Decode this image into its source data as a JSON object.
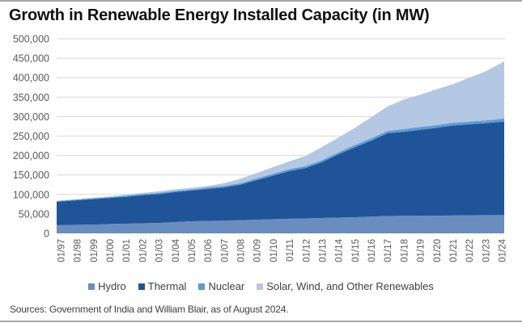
{
  "chart_data": {
    "type": "area",
    "stacked": true,
    "title": "Growth in Renewable Energy Installed Capacity (in MW)",
    "xlabel": "",
    "ylabel": "",
    "ylim": [
      0,
      500000
    ],
    "yticks": [
      0,
      50000,
      100000,
      150000,
      200000,
      250000,
      300000,
      350000,
      400000,
      450000,
      500000
    ],
    "ytick_labels": [
      "0",
      "50,000",
      "100,000",
      "150,000",
      "200,000",
      "250,000",
      "300,000",
      "350,000",
      "400,000",
      "450,000",
      "500,000"
    ],
    "grid": true,
    "legend_position": "bottom",
    "categories": [
      "01/97",
      "01/98",
      "01/99",
      "01/00",
      "01/01",
      "01/02",
      "01/03",
      "01/04",
      "01/05",
      "01/06",
      "01/07",
      "01/08",
      "01/09",
      "01/10",
      "01/11",
      "01/12",
      "01/13",
      "01/14",
      "01/15",
      "01/16",
      "01/17",
      "01/18",
      "01/19",
      "01/20",
      "01/21",
      "01/22",
      "01/23",
      "01/24"
    ],
    "series": [
      {
        "name": "Hydro",
        "color": "#6a8dbf",
        "values": [
          21000,
          22000,
          22500,
          24000,
          25000,
          26000,
          27000,
          29000,
          31000,
          32000,
          33000,
          34000,
          35000,
          36500,
          37500,
          38500,
          39500,
          40500,
          41500,
          43000,
          44500,
          45000,
          45400,
          45700,
          46000,
          46700,
          47000,
          47000
        ]
      },
      {
        "name": "Thermal",
        "color": "#1f5499",
        "values": [
          60000,
          63000,
          65500,
          67000,
          69000,
          72000,
          74000,
          77000,
          79000,
          82000,
          85000,
          91000,
          102000,
          111500,
          122500,
          129500,
          143500,
          162500,
          179500,
          195000,
          212500,
          216000,
          220600,
          225300,
          231000,
          233300,
          236000,
          240000
        ]
      },
      {
        "name": "Nuclear",
        "color": "#5b9bd5",
        "values": [
          2000,
          2000,
          2000,
          2000,
          3000,
          3000,
          3000,
          3000,
          3000,
          4000,
          4000,
          4000,
          4000,
          5000,
          5000,
          5000,
          5000,
          5000,
          6000,
          6000,
          6000,
          7000,
          7000,
          7000,
          7000,
          7000,
          7000,
          8000
        ]
      },
      {
        "name": "Solar, Wind, and Other Renewables",
        "color": "#b4c7e3",
        "values": [
          1000,
          1000,
          2000,
          2000,
          2000,
          3000,
          4000,
          4000,
          4000,
          4000,
          7000,
          11000,
          14000,
          17000,
          20000,
          26000,
          34000,
          38000,
          44000,
          54000,
          63000,
          76000,
          83000,
          92000,
          99000,
          113000,
          126000,
          147000
        ]
      }
    ]
  },
  "legend": {
    "items": [
      {
        "label": "Hydro",
        "color": "#6a8dbf"
      },
      {
        "label": "Thermal",
        "color": "#1f5499"
      },
      {
        "label": "Nuclear",
        "color": "#5b9bd5"
      },
      {
        "label": "Solar, Wind, and Other Renewables",
        "color": "#b4c7e3"
      }
    ]
  },
  "source_note": "Sources: Government of India and William Blair, as of August 2024."
}
